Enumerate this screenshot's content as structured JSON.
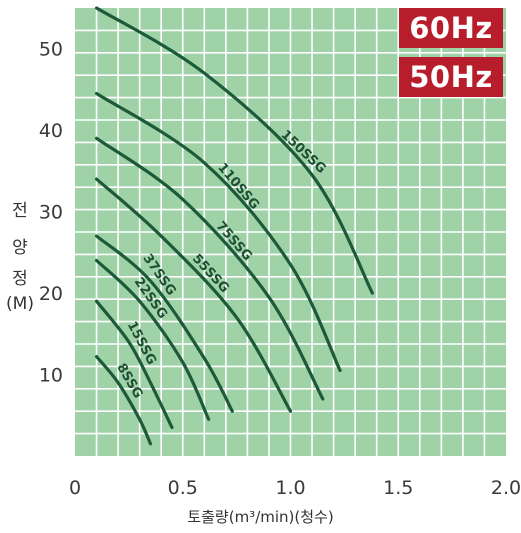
{
  "badges": {
    "hz60": "60Hz",
    "hz50": "50Hz"
  },
  "colors": {
    "plot_bg": "#9fd3a7",
    "grid": "#ffffff",
    "curve": "#1d5a3a",
    "badge_bg": "#b81d2b"
  },
  "ylabel": {
    "ch1": "전",
    "ch2": "양",
    "ch3": "정",
    "unit": "(M)"
  },
  "xlabel": "토출량(m³/min)(청수)",
  "chart_data": {
    "type": "line",
    "xlim": [
      0,
      2.0
    ],
    "ylim": [
      0,
      55
    ],
    "x_ticks": [
      0,
      0.5,
      1.0,
      1.5,
      2.0
    ],
    "x_tick_labels": [
      "0",
      "0.5",
      "1.0",
      "1.5",
      "2.0"
    ],
    "y_ticks": [
      10,
      20,
      30,
      40,
      50
    ],
    "y_tick_labels": [
      "10",
      "20",
      "30",
      "40",
      "50"
    ],
    "grid": true,
    "xlabel": "토출량(m³/min)(청수)",
    "ylabel": "전양정(M)",
    "series": [
      {
        "name": "8SSG",
        "x": [
          0.1,
          0.2,
          0.3,
          0.35
        ],
        "y": [
          12.2,
          9.0,
          4.5,
          1.5
        ]
      },
      {
        "name": "15SSG",
        "x": [
          0.1,
          0.25,
          0.35,
          0.45
        ],
        "y": [
          19.0,
          14.0,
          9.0,
          3.5
        ]
      },
      {
        "name": "22SSG",
        "x": [
          0.1,
          0.3,
          0.5,
          0.62
        ],
        "y": [
          24.0,
          19.0,
          11.5,
          4.5
        ]
      },
      {
        "name": "37SSG",
        "x": [
          0.1,
          0.35,
          0.6,
          0.73
        ],
        "y": [
          27.0,
          21.5,
          12.0,
          5.5
        ]
      },
      {
        "name": "55SSG",
        "x": [
          0.1,
          0.4,
          0.75,
          1.0
        ],
        "y": [
          34.0,
          27.0,
          17.0,
          5.5
        ]
      },
      {
        "name": "75SSG",
        "x": [
          0.1,
          0.5,
          0.9,
          1.15
        ],
        "y": [
          39.0,
          31.5,
          19.5,
          7.0
        ]
      },
      {
        "name": "110SSG",
        "x": [
          0.1,
          0.6,
          1.0,
          1.23
        ],
        "y": [
          44.5,
          36.0,
          23.5,
          10.5
        ]
      },
      {
        "name": "150SSG",
        "x": [
          0.1,
          0.6,
          1.1,
          1.38
        ],
        "y": [
          55.0,
          47.0,
          34.5,
          20.0
        ]
      }
    ]
  }
}
